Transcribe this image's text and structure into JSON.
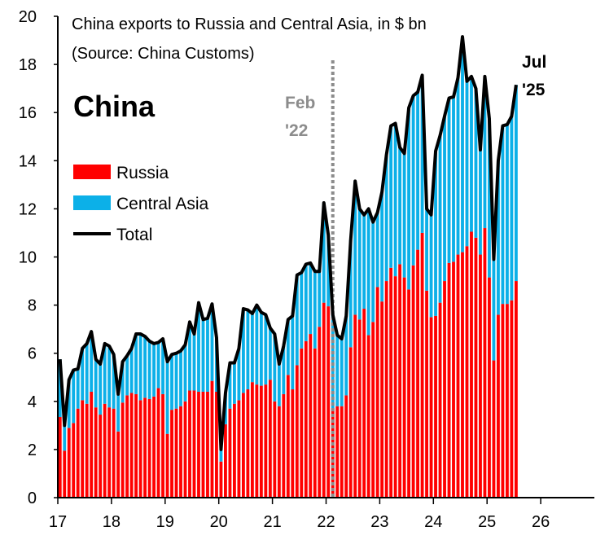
{
  "chart_data": {
    "type": "bar",
    "title_line1": "China exports to Russia and Central Asia, in $ bn",
    "title_line2": "(Source: China Customs)",
    "country_label": "China",
    "y_ticks": [
      "0",
      "2",
      "4",
      "6",
      "8",
      "10",
      "12",
      "14",
      "16",
      "18",
      "20"
    ],
    "ylim": [
      0,
      20
    ],
    "x_ticks": [
      "17",
      "18",
      "19",
      "20",
      "21",
      "22",
      "23",
      "24",
      "25",
      "26"
    ],
    "x_tick_values": [
      2017,
      2018,
      2019,
      2020,
      2021,
      2022,
      2023,
      2024,
      2025,
      2026
    ],
    "xlim": [
      2017,
      2027
    ],
    "grid": false,
    "legend_position": "left",
    "first_month": "2017-01",
    "colors": {
      "russia": "#ff0000",
      "central_asia": "#0cb0e8",
      "total": "#000000",
      "marker": "#8c8c8c"
    },
    "series": [
      {
        "name": "Russia",
        "values": [
          3.35,
          1.95,
          2.9,
          3.1,
          3.7,
          4.05,
          3.9,
          4.4,
          3.75,
          3.45,
          3.9,
          3.75,
          3.7,
          2.75,
          3.95,
          4.25,
          4.35,
          4.3,
          4.05,
          4.15,
          4.1,
          4.2,
          4.55,
          4.3,
          2.65,
          3.65,
          3.7,
          3.8,
          4.0,
          4.45,
          4.45,
          4.4,
          4.4,
          4.4,
          4.85,
          4.4,
          1.5,
          3.05,
          3.7,
          3.9,
          4.05,
          4.35,
          4.5,
          4.8,
          4.7,
          4.65,
          4.7,
          4.9,
          4.0,
          3.8,
          4.3,
          5.1,
          4.5,
          5.5,
          6.2,
          6.5,
          6.8,
          6.2,
          7.1,
          8.1,
          7.95,
          3.7,
          3.8,
          3.8,
          4.25,
          6.25,
          7.6,
          7.4,
          7.85,
          6.75,
          7.3,
          8.75,
          8.15,
          9.0,
          9.55,
          9.2,
          9.7,
          9.15,
          8.65,
          9.65,
          10.3,
          11.0,
          8.6,
          7.5,
          7.55,
          8.1,
          9.0,
          9.75,
          9.8,
          10.1,
          10.2,
          10.45,
          11.05,
          10.8,
          10.1,
          11.2,
          9.15,
          5.7,
          7.6,
          8.05,
          8.05,
          8.2,
          9.0
        ]
      },
      {
        "name": "Central Asia",
        "values": [
          2.4,
          1.05,
          2.0,
          2.2,
          1.65,
          2.15,
          2.5,
          2.5,
          2.0,
          2.1,
          2.5,
          2.55,
          2.25,
          1.55,
          1.7,
          1.65,
          1.85,
          2.5,
          2.75,
          2.55,
          2.4,
          2.2,
          1.9,
          2.3,
          3.0,
          2.3,
          2.3,
          2.3,
          2.35,
          2.85,
          2.35,
          3.7,
          3.0,
          3.05,
          3.2,
          2.25,
          0.5,
          1.3,
          1.9,
          1.7,
          2.15,
          3.5,
          3.3,
          2.85,
          3.3,
          3.05,
          2.9,
          2.15,
          2.8,
          1.75,
          2.0,
          2.3,
          3.05,
          3.75,
          3.15,
          3.2,
          2.95,
          3.2,
          2.3,
          4.15,
          2.95,
          3.9,
          2.95,
          2.8,
          3.3,
          4.45,
          5.55,
          4.6,
          3.9,
          5.25,
          4.15,
          3.1,
          4.55,
          5.25,
          5.9,
          6.35,
          4.85,
          5.15,
          7.55,
          7.05,
          6.55,
          6.55,
          3.4,
          4.25,
          6.85,
          6.95,
          6.85,
          6.85,
          6.85,
          7.35,
          8.95,
          6.85,
          6.45,
          6.2,
          4.35,
          6.3,
          6.6,
          4.2,
          6.4,
          7.4,
          7.45,
          7.65,
          8.15
        ]
      },
      {
        "name": "Total",
        "values": [
          5.75,
          3.0,
          4.9,
          5.3,
          5.35,
          6.2,
          6.4,
          6.9,
          5.75,
          5.55,
          6.4,
          6.3,
          5.95,
          4.3,
          5.65,
          5.9,
          6.2,
          6.8,
          6.8,
          6.7,
          6.5,
          6.4,
          6.45,
          6.6,
          5.65,
          5.95,
          6.0,
          6.1,
          6.35,
          7.3,
          6.8,
          8.1,
          7.4,
          7.45,
          8.05,
          6.65,
          2.0,
          4.35,
          5.6,
          5.6,
          6.2,
          7.85,
          7.8,
          7.65,
          8.0,
          7.7,
          7.6,
          7.05,
          6.8,
          5.55,
          6.3,
          7.4,
          7.55,
          9.25,
          9.35,
          9.7,
          9.75,
          9.4,
          9.4,
          12.25,
          10.9,
          7.6,
          6.75,
          6.6,
          7.55,
          10.7,
          13.15,
          12.0,
          11.75,
          12.0,
          11.45,
          11.85,
          12.7,
          14.25,
          15.45,
          15.55,
          14.55,
          14.3,
          16.2,
          16.7,
          16.85,
          17.55,
          12.0,
          11.75,
          14.4,
          15.05,
          15.85,
          16.6,
          16.65,
          17.45,
          19.15,
          17.3,
          17.5,
          17.0,
          14.45,
          17.5,
          15.75,
          9.9,
          14.0,
          15.45,
          15.5,
          15.85,
          17.15
        ]
      }
    ],
    "annotations": {
      "feb22_line1": "Feb",
      "feb22_line2": "'22",
      "feb22_x": "2022-02",
      "jul25_line1": "Jul",
      "jul25_line2": "'25",
      "jul25_x": "2025-07"
    }
  },
  "legend": {
    "russia_label": "Russia",
    "central_asia_label": "Central Asia",
    "total_label": "Total"
  }
}
